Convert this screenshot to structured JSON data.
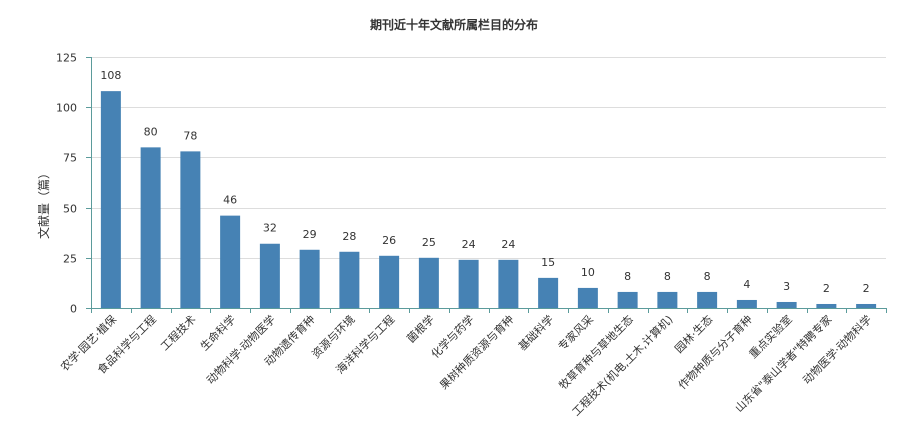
{
  "chart_data": {
    "type": "bar",
    "title": "期刊近十年文献所属栏目的分布",
    "xlabel": "",
    "ylabel": "文献量（篇）",
    "ylim": [
      0,
      125
    ],
    "yticks": [
      0,
      25,
      50,
      75,
      100,
      125
    ],
    "grid": true,
    "colors": {
      "bar": "#4682b4",
      "axis": "#5b9b9b",
      "grid": "#dddddd"
    },
    "categories": [
      "农学·园艺·植保",
      "食品科学与工程",
      "工程技术",
      "生命科学",
      "动物科学·动物医学",
      "动物遗传育种",
      "资源与环境",
      "海洋科学与工程",
      "菌根学",
      "化学与药学",
      "果树种质资源与育种",
      "基础科学",
      "专家风采",
      "牧草育种与草地生态",
      "工程技术(机电,土木,计算机)",
      "园林·生态",
      "作物种质与分子育种",
      "重点实验室",
      "山东省\"泰山学者\"特聘专家",
      "动物医学·动物科学"
    ],
    "values": [
      108,
      80,
      78,
      46,
      32,
      29,
      28,
      26,
      25,
      24,
      24,
      15,
      10,
      8,
      8,
      8,
      4,
      3,
      2,
      2
    ]
  }
}
